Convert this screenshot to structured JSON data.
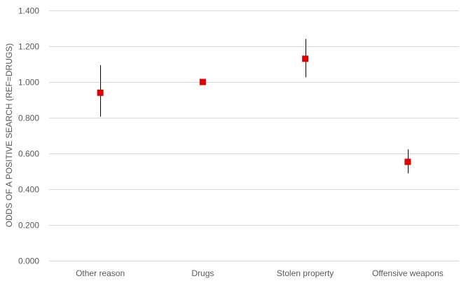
{
  "chart_data": {
    "type": "scatter",
    "title": "",
    "xlabel": "",
    "ylabel": "ODDS OF A POSITIVE SEARCH (REF=DRUGS)",
    "categories": [
      "Other reason",
      "Drugs",
      "Stolen property",
      "Offensive weapons"
    ],
    "ylim": [
      0,
      1.4
    ],
    "yticks": [
      "0.000",
      "0.200",
      "0.400",
      "0.600",
      "0.800",
      "1.000",
      "1.200",
      "1.400"
    ],
    "yticks_values": [
      0,
      0.2,
      0.4,
      0.6,
      0.8,
      1.0,
      1.2,
      1.4
    ],
    "grid": true,
    "legend": "none",
    "series": [
      {
        "values": [
          0.94,
          1.0,
          1.13,
          0.553
        ],
        "lower": [
          0.806,
          1.0,
          1.026,
          0.489
        ],
        "upper": [
          1.094,
          1.0,
          1.241,
          0.623
        ]
      }
    ],
    "colors": {
      "marker": "#e00000",
      "errorbar": "#000000",
      "grid": "#d9d9d9",
      "text": "#595959"
    }
  }
}
